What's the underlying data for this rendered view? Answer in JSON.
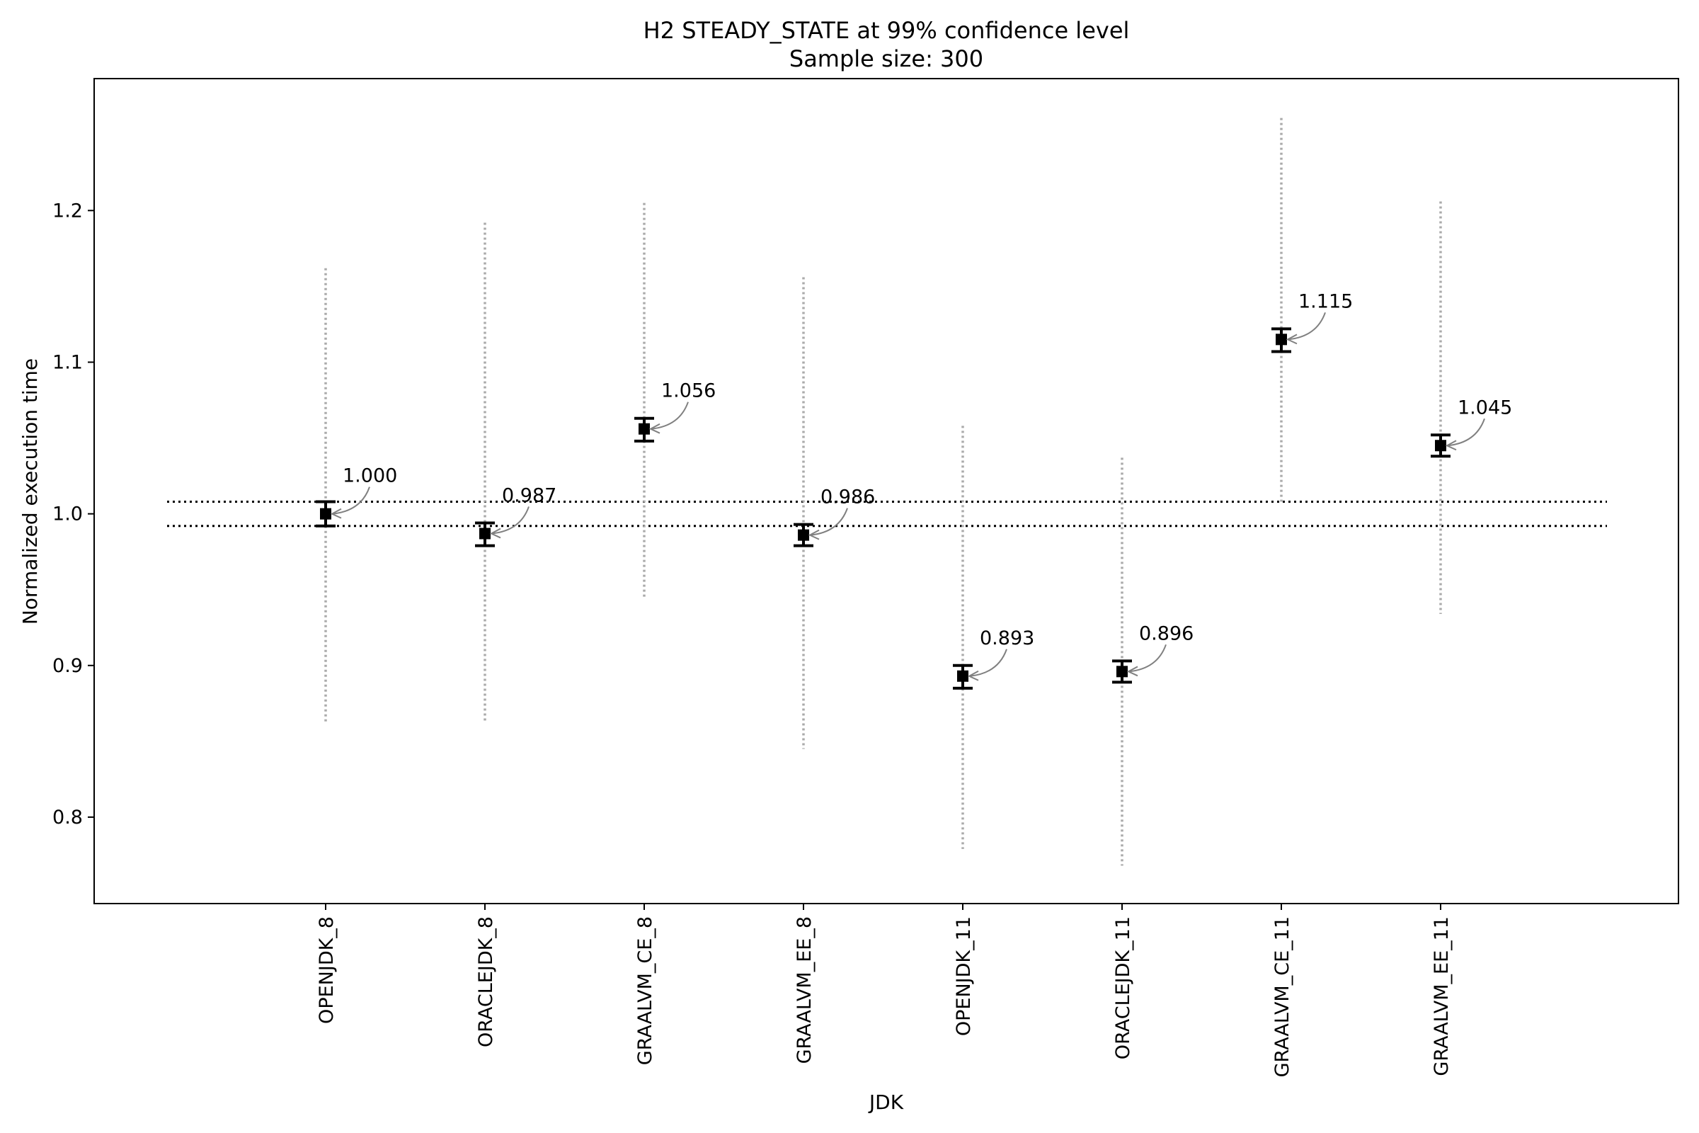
{
  "chart_data": {
    "type": "scatter",
    "title": "H2 STEADY_STATE at 99% confidence level",
    "subtitle": "Sample size: 300",
    "xlabel": "JDK",
    "ylabel": "Normalized execution time",
    "ylim": [
      0.743,
      1.287
    ],
    "yticks": [
      0.8,
      0.9,
      1.0,
      1.1,
      1.2
    ],
    "ytick_labels": [
      "0.8",
      "0.9",
      "1.0",
      "1.1",
      "1.2"
    ],
    "grid": false,
    "reference_band": [
      0.992,
      1.008
    ],
    "categories": [
      "OPENJDK_8",
      "ORACLEJDK_8",
      "GRAALVM_CE_8",
      "GRAALVM_EE_8",
      "OPENJDK_11",
      "ORACLEJDK_11",
      "GRAALVM_CE_11",
      "GRAALVM_EE_11"
    ],
    "series": [
      {
        "values": [
          1.0,
          0.987,
          1.056,
          0.986,
          0.893,
          0.896,
          1.115,
          1.045
        ],
        "ci_low": [
          0.992,
          0.979,
          1.048,
          0.979,
          0.885,
          0.889,
          1.107,
          1.038
        ],
        "ci_high": [
          1.008,
          0.994,
          1.063,
          0.993,
          0.9,
          0.903,
          1.122,
          1.052
        ],
        "range_low": [
          0.862,
          0.862,
          0.945,
          0.845,
          0.779,
          0.768,
          1.008,
          0.934
        ],
        "range_high": [
          1.162,
          1.192,
          1.205,
          1.156,
          1.058,
          1.037,
          1.261,
          1.206
        ],
        "labels": [
          "1.000",
          "0.987",
          "1.056",
          "0.986",
          "0.893",
          "0.896",
          "1.115",
          "1.045"
        ]
      }
    ],
    "colors": {
      "point": "#000000",
      "range": "#aaaaaa",
      "reference": "#000000",
      "annotation_arrow": "#808080"
    }
  }
}
